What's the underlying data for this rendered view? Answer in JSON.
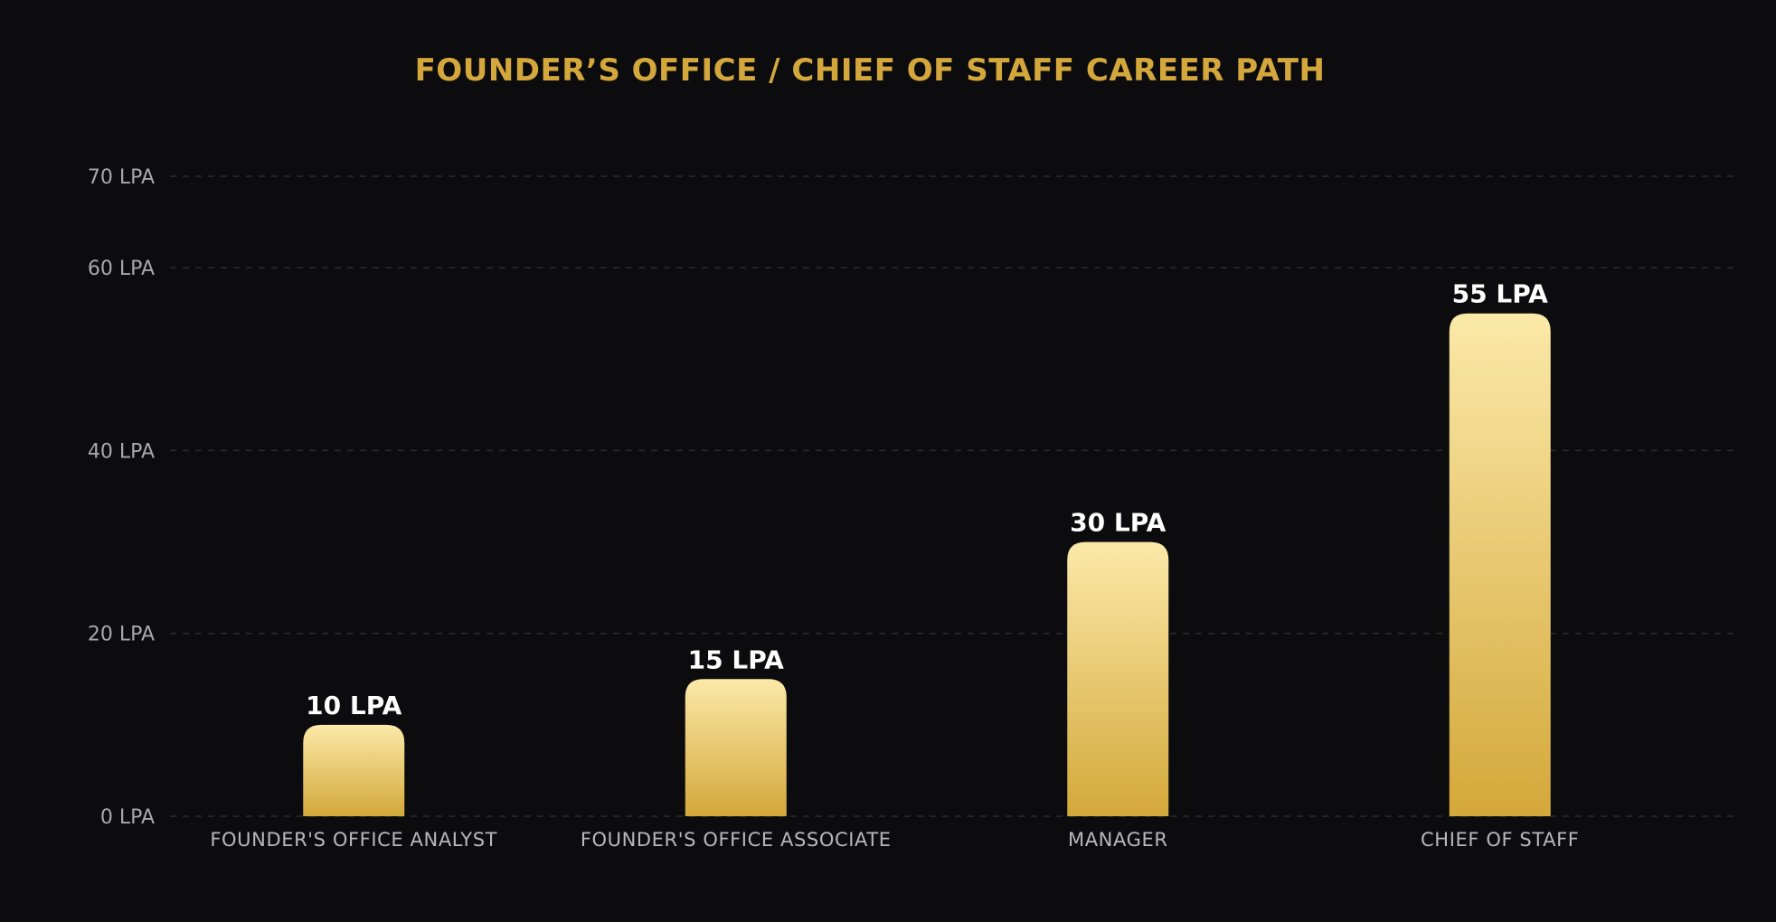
{
  "chart_data": {
    "type": "bar",
    "title": "FOUNDER’S OFFICE / CHIEF OF STAFF CAREER PATH",
    "xlabel": "",
    "ylabel": "",
    "categories": [
      "FOUNDER'S OFFICE ANALYST",
      "FOUNDER'S OFFICE ASSOCIATE",
      "MANAGER",
      "CHIEF OF STAFF"
    ],
    "values": [
      10,
      15,
      30,
      55
    ],
    "data_labels": [
      "10 LPA",
      "15 LPA",
      "30 LPA",
      "55 LPA"
    ],
    "ylim": [
      0,
      70
    ],
    "yticks": [
      0,
      20,
      40,
      60,
      70
    ],
    "ytick_labels": [
      "0 LPA",
      "20 LPA",
      "40 LPA",
      "60 LPA",
      "70 LPA"
    ],
    "grid": true,
    "legend": "none",
    "colors": {
      "title": "#d4a73c",
      "bar_top": "#fbe9a8",
      "bar_bottom": "#d4a83a",
      "background": "#0c0c0e"
    }
  }
}
